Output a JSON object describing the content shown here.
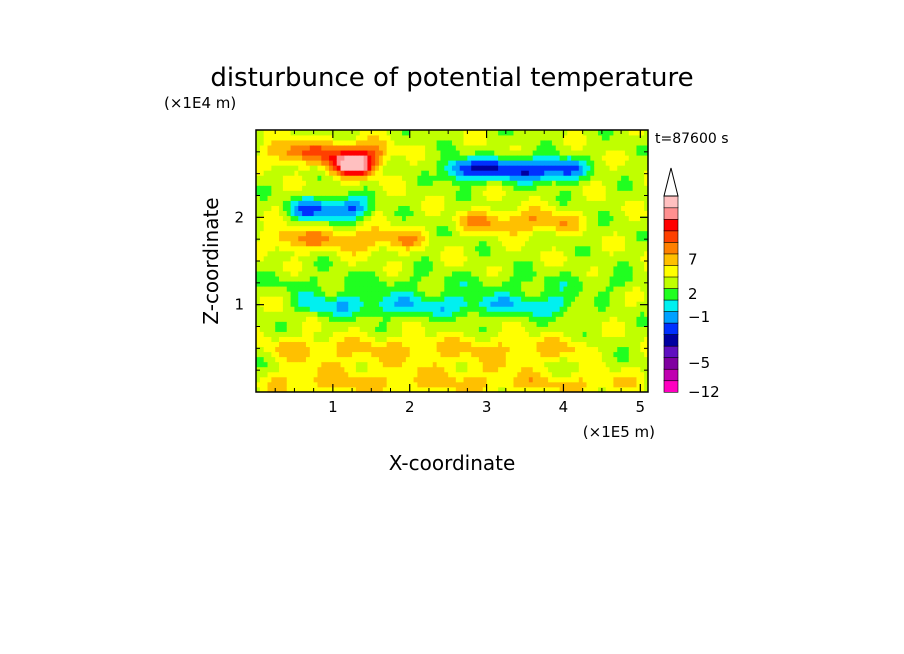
{
  "chart_data": {
    "type": "heatmap",
    "title": "disturbunce of potential temperature",
    "time_label": "t=87600 s",
    "xlabel": "X-coordinate",
    "ylabel": "Z-coordinate",
    "x_unit": "(×1E5 m)",
    "y_unit": "(×1E4 m)",
    "xlim": [
      0,
      5.1
    ],
    "ylim": [
      0,
      3.0
    ],
    "x_ticks": [
      "1",
      "2",
      "3",
      "4",
      "5"
    ],
    "y_ticks": [
      "1",
      "2"
    ],
    "colorbar": {
      "tick_labels": [
        "7",
        "2",
        "−1",
        "−5",
        "−12"
      ],
      "colors": [
        "#ff00c0",
        "#c000b0",
        "#8000a0",
        "#6010c0",
        "#0000a0",
        "#0030ff",
        "#00a0ff",
        "#00f0f0",
        "#20ff20",
        "#c0ff00",
        "#ffff00",
        "#ffc000",
        "#ff8000",
        "#ff4000",
        "#ff0000",
        "#ff9090",
        "#ffc0c0"
      ],
      "extend": "max"
    },
    "field_description": "contour-filled perturbation field",
    "bands": [
      {
        "z": 2.75,
        "x_from": 0.0,
        "x_to": 1.9,
        "level": 4
      },
      {
        "z": 2.6,
        "x_from": 0.8,
        "x_to": 1.7,
        "level": 8
      },
      {
        "z": 2.55,
        "x_from": 2.3,
        "x_to": 4.4,
        "level": -6
      },
      {
        "z": 2.1,
        "x_from": 0.3,
        "x_to": 1.6,
        "level": -5
      },
      {
        "z": 1.95,
        "x_from": 2.5,
        "x_to": 4.3,
        "level": 3
      },
      {
        "z": 1.75,
        "x_from": 0.0,
        "x_to": 2.3,
        "level": 3
      },
      {
        "z": 1.5,
        "x_from": 0.0,
        "x_to": 5.1,
        "level": 0
      },
      {
        "z": 1.25,
        "x_from": 0.0,
        "x_to": 5.1,
        "level": -1
      },
      {
        "z": 1.0,
        "x_from": 0.4,
        "x_to": 4.3,
        "level": -3
      },
      {
        "z": 0.75,
        "x_from": 0.0,
        "x_to": 5.1,
        "level": 0
      },
      {
        "z": 0.5,
        "x_from": 0.0,
        "x_to": 4.5,
        "level": 2
      },
      {
        "z": 0.3,
        "x_from": 0.3,
        "x_to": 3.8,
        "level": 1
      },
      {
        "z": 0.1,
        "x_from": 0.0,
        "x_to": 5.1,
        "level": 2
      }
    ]
  }
}
